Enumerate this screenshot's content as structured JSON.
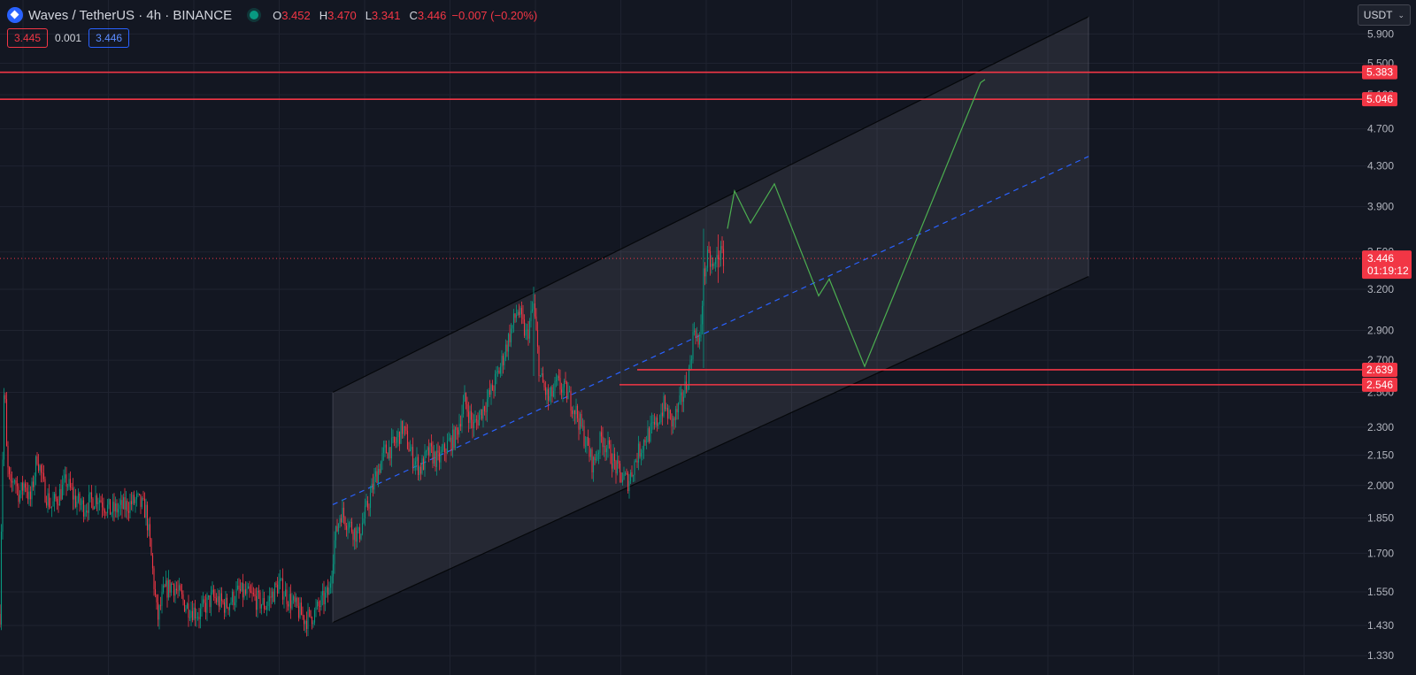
{
  "header": {
    "title": "Waves / TetherUS · 4h · BINANCE",
    "ohlc": [
      {
        "label": "O",
        "value": "3.452"
      },
      {
        "label": "H",
        "value": "3.470"
      },
      {
        "label": "L",
        "value": "3.341"
      },
      {
        "label": "C",
        "value": "3.446"
      }
    ],
    "change": "−0.007 (−0.20%)",
    "bid": "3.445",
    "spread": "0.001",
    "ask": "3.446",
    "currency": "USDT"
  },
  "colors": {
    "background": "#131722",
    "up": "#089981",
    "down": "#f23645",
    "level_line": "#f23645",
    "projection": "#4caf50",
    "midline": "#2962ff"
  },
  "chart_data": {
    "type": "candlestick",
    "y_scale": "log",
    "ylim": [
      1.27,
      6.4
    ],
    "y_ticks": [
      "5.900",
      "5.500",
      "5.100",
      "4.700",
      "4.300",
      "3.900",
      "3.500",
      "3.200",
      "2.900",
      "2.700",
      "2.500",
      "2.300",
      "2.150",
      "2.000",
      "1.850",
      "1.700",
      "1.550",
      "1.430",
      "1.330"
    ],
    "price_path": [
      [
        0,
        1.47
      ],
      [
        2,
        1.95
      ],
      [
        5,
        2.6
      ],
      [
        8,
        2.1
      ],
      [
        12,
        1.98
      ],
      [
        16,
        2.05
      ],
      [
        22,
        1.95
      ],
      [
        28,
        2.02
      ],
      [
        34,
        1.92
      ],
      [
        42,
        2.15
      ],
      [
        50,
        1.98
      ],
      [
        58,
        1.9
      ],
      [
        66,
        1.95
      ],
      [
        75,
        2.02
      ],
      [
        85,
        1.93
      ],
      [
        95,
        1.9
      ],
      [
        110,
        1.95
      ],
      [
        125,
        1.88
      ],
      [
        140,
        1.9
      ],
      [
        155,
        1.93
      ],
      [
        165,
        1.88
      ],
      [
        170,
        1.72
      ],
      [
        178,
        1.45
      ],
      [
        185,
        1.55
      ],
      [
        195,
        1.58
      ],
      [
        210,
        1.5
      ],
      [
        225,
        1.47
      ],
      [
        240,
        1.53
      ],
      [
        255,
        1.5
      ],
      [
        270,
        1.55
      ],
      [
        285,
        1.53
      ],
      [
        300,
        1.5
      ],
      [
        315,
        1.58
      ],
      [
        325,
        1.53
      ],
      [
        335,
        1.49
      ],
      [
        345,
        1.45
      ],
      [
        355,
        1.47
      ],
      [
        365,
        1.52
      ],
      [
        372,
        1.55
      ],
      [
        378,
        1.75
      ],
      [
        385,
        1.88
      ],
      [
        395,
        1.82
      ],
      [
        405,
        1.77
      ],
      [
        415,
        1.9
      ],
      [
        425,
        2.05
      ],
      [
        435,
        2.17
      ],
      [
        445,
        2.2
      ],
      [
        455,
        2.3
      ],
      [
        465,
        2.15
      ],
      [
        475,
        2.08
      ],
      [
        485,
        2.17
      ],
      [
        495,
        2.12
      ],
      [
        505,
        2.2
      ],
      [
        515,
        2.25
      ],
      [
        525,
        2.45
      ],
      [
        535,
        2.3
      ],
      [
        545,
        2.4
      ],
      [
        555,
        2.5
      ],
      [
        565,
        2.65
      ],
      [
        575,
        2.85
      ],
      [
        585,
        3.05
      ],
      [
        595,
        2.85
      ],
      [
        603,
        3.08
      ],
      [
        610,
        2.6
      ],
      [
        620,
        2.45
      ],
      [
        630,
        2.55
      ],
      [
        640,
        2.5
      ],
      [
        650,
        2.4
      ],
      [
        660,
        2.25
      ],
      [
        670,
        2.1
      ],
      [
        680,
        2.25
      ],
      [
        690,
        2.15
      ],
      [
        700,
        2.05
      ],
      [
        710,
        2.02
      ],
      [
        720,
        2.15
      ],
      [
        730,
        2.25
      ],
      [
        740,
        2.3
      ],
      [
        750,
        2.42
      ],
      [
        760,
        2.32
      ],
      [
        770,
        2.45
      ],
      [
        778,
        2.6
      ],
      [
        785,
        2.95
      ],
      [
        790,
        2.75
      ],
      [
        795,
        3.3
      ],
      [
        800,
        3.45
      ],
      [
        806,
        3.35
      ],
      [
        812,
        3.5
      ],
      [
        818,
        3.446
      ]
    ],
    "spikes": [
      {
        "x": 7,
        "high": 2.88,
        "low": 2.1
      },
      {
        "x": 55,
        "high": 2.88,
        "low": 2.05
      },
      {
        "x": 178,
        "high": 1.6,
        "low": 1.32
      },
      {
        "x": 385,
        "high": 2.17,
        "low": 1.75
      },
      {
        "x": 603,
        "high": 3.22,
        "low": 2.6
      },
      {
        "x": 795,
        "high": 3.7,
        "low": 2.65
      },
      {
        "x": 812,
        "high": 3.65,
        "low": 3.25
      }
    ],
    "horizontal_levels": [
      {
        "price": 5.383,
        "label": "5.383",
        "x_start": 0
      },
      {
        "price": 5.046,
        "label": "5.046",
        "x_start": 0
      },
      {
        "price": 2.639,
        "label": "2.639",
        "x_start": 720
      },
      {
        "price": 2.546,
        "label": "2.546",
        "x_start": 700
      }
    ],
    "channel": {
      "upper": [
        [
          376,
          2.5
        ],
        [
          1230,
          6.15
        ]
      ],
      "lower": [
        [
          376,
          1.44
        ],
        [
          1230,
          3.3
        ]
      ],
      "mid": [
        [
          376,
          1.91
        ],
        [
          1230,
          4.4
        ]
      ]
    },
    "projection": [
      [
        822,
        3.7
      ],
      [
        830,
        4.05
      ],
      [
        848,
        3.75
      ],
      [
        875,
        4.12
      ],
      [
        925,
        3.15
      ],
      [
        937,
        3.28
      ],
      [
        977,
        2.66
      ],
      [
        1108,
        5.25
      ],
      [
        1113,
        5.29
      ]
    ],
    "current_price": {
      "label": "3.446",
      "countdown": "01:19:12",
      "value": 3.446
    }
  }
}
